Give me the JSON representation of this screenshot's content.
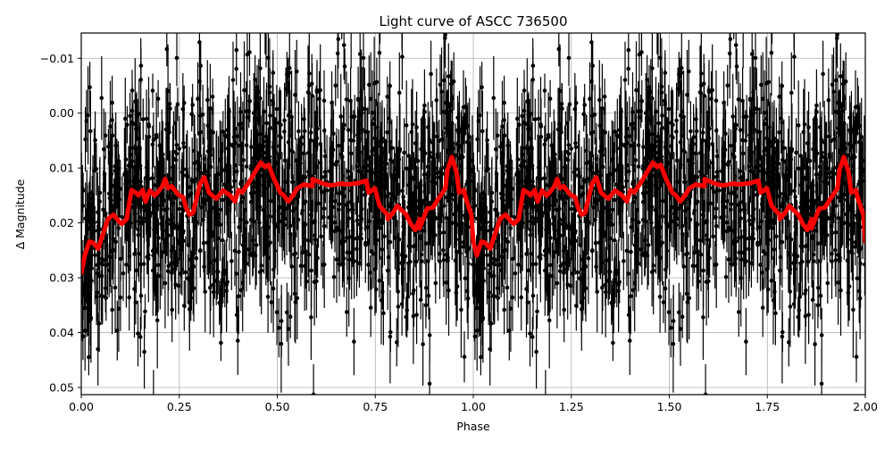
{
  "figure": {
    "title": "Light curve of ASCC 736500",
    "xlabel": "Phase",
    "ylabel": "Δ Magnitude"
  },
  "colors": {
    "data_points": "#000000",
    "fit_curve": "#ff0000",
    "grid": "#b0b0b0",
    "axes": "#000000"
  },
  "chart_data": {
    "type": "scatter",
    "title": "Light curve of ASCC 736500",
    "xlabel": "Phase",
    "ylabel": "Δ Magnitude",
    "xlim": [
      0.0,
      2.0
    ],
    "ylim": [
      0.0513,
      -0.0146
    ],
    "y_inverted": true,
    "grid": true,
    "legend": null,
    "x_ticks": [
      "0.00",
      "0.25",
      "0.50",
      "0.75",
      "1.00",
      "1.25",
      "1.50",
      "1.75",
      "2.00"
    ],
    "y_ticks": [
      "−0.01",
      "0.00",
      "0.01",
      "0.02",
      "0.03",
      "0.04",
      "0.05"
    ],
    "series": [
      {
        "name": "observations (with error bars)",
        "style": "black points with vertical error bars",
        "description": "Dense phase-folded photometry spanning roughly -0.015 to 0.051 mag, repeated for phase 0-1 and 1-2",
        "approx_range": [
          -0.015,
          0.051
        ]
      },
      {
        "name": "binned / smoothed fit",
        "style": "thick red line",
        "x": [
          0.0,
          0.009,
          0.021,
          0.032,
          0.043,
          0.059,
          0.068,
          0.082,
          0.096,
          0.103,
          0.116,
          0.128,
          0.139,
          0.146,
          0.157,
          0.164,
          0.175,
          0.187,
          0.194,
          0.207,
          0.214,
          0.221,
          0.23,
          0.248,
          0.26,
          0.267,
          0.276,
          0.285,
          0.303,
          0.314,
          0.326,
          0.344,
          0.351,
          0.362,
          0.38,
          0.392,
          0.401,
          0.41,
          0.426,
          0.433,
          0.446,
          0.458,
          0.469,
          0.478,
          0.49,
          0.508,
          0.517,
          0.528,
          0.54,
          0.551,
          0.567,
          0.59,
          0.59,
          0.615,
          0.636,
          0.665,
          0.67,
          0.704,
          0.727,
          0.733,
          0.749,
          0.761,
          0.781,
          0.782,
          0.795,
          0.806,
          0.829,
          0.841,
          0.852,
          0.863,
          0.863,
          0.882,
          0.897,
          0.911,
          0.929,
          0.934,
          0.945,
          0.957,
          0.964,
          0.976,
          0.981,
          0.995,
          1.0
        ],
        "y": [
          0.0291,
          0.0259,
          0.0234,
          0.0237,
          0.0247,
          0.0213,
          0.0193,
          0.0185,
          0.0197,
          0.0202,
          0.0193,
          0.014,
          0.0145,
          0.015,
          0.014,
          0.0161,
          0.0141,
          0.015,
          0.0145,
          0.0133,
          0.012,
          0.0137,
          0.0133,
          0.0149,
          0.0153,
          0.0172,
          0.0185,
          0.0182,
          0.0128,
          0.0117,
          0.0145,
          0.0156,
          0.015,
          0.0141,
          0.015,
          0.0161,
          0.014,
          0.0145,
          0.0128,
          0.012,
          0.0104,
          0.009,
          0.0098,
          0.0094,
          0.0117,
          0.0145,
          0.015,
          0.0161,
          0.015,
          0.0137,
          0.013,
          0.0133,
          0.012,
          0.0128,
          0.0132,
          0.0128,
          0.013,
          0.0128,
          0.0123,
          0.0145,
          0.0137,
          0.0169,
          0.0185,
          0.0193,
          0.0182,
          0.0169,
          0.0185,
          0.0202,
          0.0213,
          0.0193,
          0.021,
          0.0174,
          0.0172,
          0.0156,
          0.0137,
          0.0104,
          0.008,
          0.0107,
          0.0145,
          0.014,
          0.0156,
          0.0185,
          0.0234
        ],
        "note": "Curve repeats identically for phase 1.00-2.00"
      }
    ]
  }
}
